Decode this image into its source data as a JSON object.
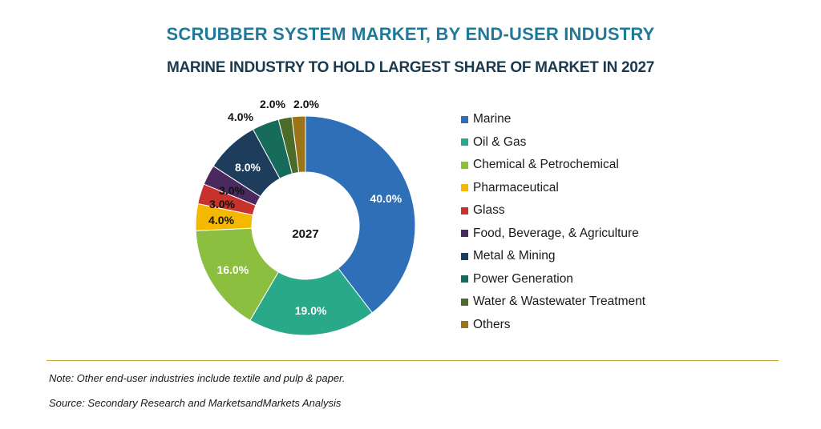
{
  "chart_data": {
    "type": "pie",
    "donut": true,
    "title": "SCRUBBER SYSTEM MARKET, BY END-USER INDUSTRY",
    "subtitle": "MARINE INDUSTRY TO HOLD LARGEST SHARE OF MARKET IN 2027",
    "center_label": "2027",
    "legend_position": "right",
    "slices": [
      {
        "name": "Marine",
        "value": 40.0,
        "label": "40.0%",
        "color": "#2e6fb7"
      },
      {
        "name": "Oil & Gas",
        "value": 19.0,
        "label": "19.0%",
        "color": "#2aa88a"
      },
      {
        "name": "Chemical & Petrochemical",
        "value": 16.0,
        "label": "16.0%",
        "color": "#8cbf3f"
      },
      {
        "name": "Pharmaceutical",
        "value": 4.0,
        "label": "4.0%",
        "color": "#f5b800"
      },
      {
        "name": "Glass",
        "value": 3.0,
        "label": "3.0%",
        "color": "#c8322c"
      },
      {
        "name": "Food, Beverage, & Agriculture",
        "value": 3.0,
        "label": "3.0%",
        "color": "#4a2a5e"
      },
      {
        "name": "Metal & Mining",
        "value": 8.0,
        "label": "8.0%",
        "color": "#1e3d5c"
      },
      {
        "name": "Power Generation",
        "value": 4.0,
        "label": "4.0%",
        "color": "#176b5b"
      },
      {
        "name": "Water & Wastewater Treatment",
        "value": 2.0,
        "label": "2.0%",
        "color": "#4c6b2a"
      },
      {
        "name": "Others",
        "value": 2.0,
        "label": "2.0%",
        "color": "#9a7416"
      }
    ]
  },
  "footer": {
    "note": "Note: Other end-user industries include textile and pulp & paper.",
    "source": "Source: Secondary Research and MarketsandMarkets Analysis"
  }
}
